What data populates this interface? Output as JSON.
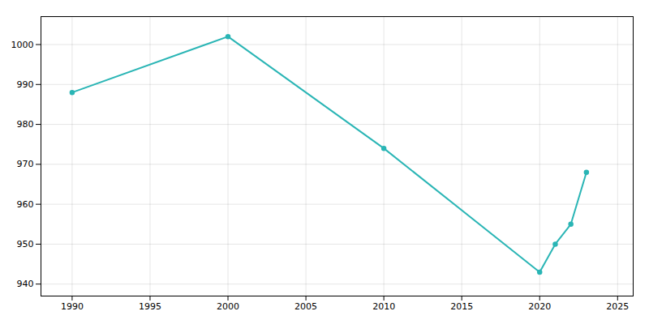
{
  "chart_data": {
    "type": "line",
    "x": [
      1990,
      2000,
      2010,
      2020,
      2021,
      2022,
      2023
    ],
    "values": [
      988,
      1002,
      974,
      943,
      950,
      955,
      968
    ],
    "color": "#2ab5b5",
    "marker": "circle",
    "xlim": [
      1988,
      2026
    ],
    "ylim": [
      937,
      1007
    ],
    "xticks": [
      1990,
      1995,
      2000,
      2005,
      2010,
      2015,
      2020,
      2025
    ],
    "yticks": [
      940,
      950,
      960,
      970,
      980,
      990,
      1000
    ],
    "grid": true
  }
}
